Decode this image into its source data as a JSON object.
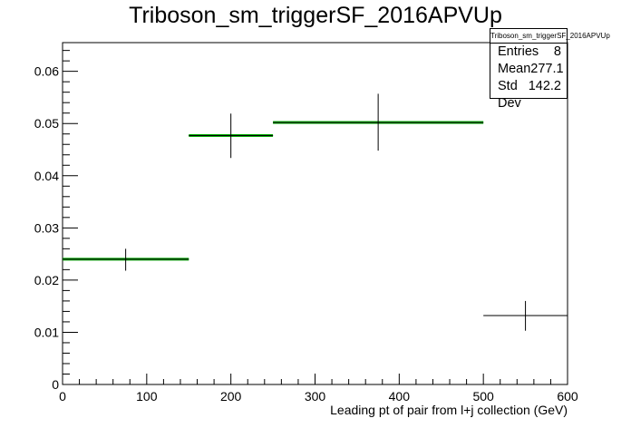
{
  "chart_data": {
    "type": "histogram",
    "title": "Triboson_sm_triggerSF_2016APVUp",
    "xlabel": "Leading pt of pair from l+j collection (GeV)",
    "ylabel": "",
    "xlim": [
      0,
      600
    ],
    "ylim": [
      0,
      0.0655
    ],
    "x_ticks": [
      "0",
      "100",
      "200",
      "300",
      "400",
      "500",
      "600"
    ],
    "y_ticks": [
      "0",
      "0.01",
      "0.02",
      "0.03",
      "0.04",
      "0.05",
      "0.06"
    ],
    "bins": [
      {
        "x_low": 0,
        "x_high": 150,
        "value": 0.024,
        "err_low": 0.0022,
        "err_high": 0.002,
        "band": true
      },
      {
        "x_low": 150,
        "x_high": 250,
        "value": 0.0477,
        "err_low": 0.0043,
        "err_high": 0.0042,
        "band": true
      },
      {
        "x_low": 250,
        "x_high": 500,
        "value": 0.0502,
        "err_low": 0.0054,
        "err_high": 0.0055,
        "band": true
      },
      {
        "x_low": 500,
        "x_high": 600,
        "value": 0.0132,
        "err_low": 0.0029,
        "err_high": 0.0028,
        "band": false
      }
    ],
    "band_color": "#00aa00",
    "line_color": "#000000",
    "stats": {
      "name": "Triboson_sm_triggerSF_2016APVUp",
      "entries_label": "Entries",
      "entries": "8",
      "mean_label": "Mean",
      "mean": "277.1",
      "std_label": "Std Dev",
      "std": "142.2"
    }
  }
}
